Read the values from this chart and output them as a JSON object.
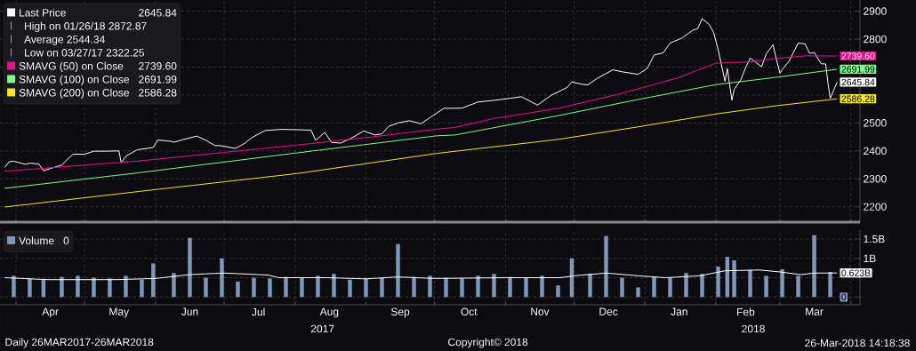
{
  "chart_data": [
    {
      "type": "line",
      "xlim": [
        "2017-03-25",
        "2018-04-05"
      ],
      "ylim": [
        2145,
        2940
      ],
      "xticks": [
        {
          "value": "2017-04-01",
          "label": null
        },
        {
          "value": "2017-05-01",
          "label": null
        },
        {
          "value": "2017-06-01",
          "label": null
        },
        {
          "value": "2017-07-01",
          "label": null
        },
        {
          "value": "2017-08-01",
          "label": null
        },
        {
          "value": "2017-09-01",
          "label": null
        },
        {
          "value": "2017-10-01",
          "label": null
        },
        {
          "value": "2017-11-01",
          "label": null
        },
        {
          "value": "2017-12-01",
          "label": null
        },
        {
          "value": "2018-01-01",
          "label": null
        },
        {
          "value": "2018-02-01",
          "label": null
        },
        {
          "value": "2018-03-01",
          "label": null
        },
        {
          "value": "2018-04-01",
          "label": null
        }
      ],
      "yticks": [
        2200,
        2300,
        2400,
        2500,
        {
          "value": 2600,
          "label": null
        },
        {
          "value": 2700,
          "label": null
        },
        2800,
        2900
      ],
      "grid": true,
      "legend": "top left",
      "tick_labels": "y",
      "annotations": [
        "High on 01/26/18 2872.87",
        "Average 2544.34",
        "Low on 03/27/17 2322.25"
      ],
      "series": [
        {
          "name": "Last Price",
          "color": "#ffffff",
          "x": [
            "2017-03-27",
            "2017-03-29",
            "2017-03-31",
            "2017-04-05",
            "2017-04-07",
            "2017-04-11",
            "2017-04-13",
            "2017-04-18",
            "2017-04-21",
            "2017-04-24",
            "2017-04-26",
            "2017-05-01",
            "2017-05-05",
            "2017-05-10",
            "2017-05-16",
            "2017-05-17",
            "2017-05-19",
            "2017-05-24",
            "2017-05-31",
            "2017-06-02",
            "2017-06-08",
            "2017-06-09",
            "2017-06-13",
            "2017-06-19",
            "2017-06-23",
            "2017-06-27",
            "2017-06-29",
            "2017-07-06",
            "2017-07-10",
            "2017-07-13",
            "2017-07-19",
            "2017-07-26",
            "2017-08-01",
            "2017-08-08",
            "2017-08-10",
            "2017-08-14",
            "2017-08-17",
            "2017-08-21",
            "2017-08-25",
            "2017-08-31",
            "2017-09-05",
            "2017-09-08",
            "2017-09-11",
            "2017-09-15",
            "2017-09-20",
            "2017-09-25",
            "2017-09-29",
            "2017-10-05",
            "2017-10-13",
            "2017-10-20",
            "2017-10-27",
            "2017-11-03",
            "2017-11-08",
            "2017-11-15",
            "2017-11-21",
            "2017-11-28",
            "2017-11-30",
            "2017-12-04",
            "2017-12-07",
            "2017-12-11",
            "2017-12-18",
            "2017-12-22",
            "2017-12-29",
            "2018-01-02",
            "2018-01-05",
            "2018-01-09",
            "2018-01-12",
            "2018-01-17",
            "2018-01-22",
            "2018-01-24",
            "2018-01-26",
            "2018-01-29",
            "2018-01-31",
            "2018-02-02",
            "2018-02-05",
            "2018-02-06",
            "2018-02-08",
            "2018-02-09",
            "2018-02-12",
            "2018-02-14",
            "2018-02-16",
            "2018-02-21",
            "2018-02-23",
            "2018-02-26",
            "2018-02-27",
            "2018-03-01",
            "2018-03-02",
            "2018-03-05",
            "2018-03-09",
            "2018-03-12",
            "2018-03-14",
            "2018-03-16",
            "2018-03-19",
            "2018-03-21",
            "2018-03-22",
            "2018-03-23",
            "2018-03-26"
          ],
          "values": [
            2341,
            2361,
            2363,
            2352,
            2356,
            2353,
            2329,
            2342,
            2349,
            2374,
            2388,
            2388,
            2399,
            2399,
            2400,
            2357,
            2381,
            2404,
            2412,
            2439,
            2434,
            2431,
            2440,
            2453,
            2438,
            2419,
            2419,
            2409,
            2427,
            2447,
            2473,
            2477,
            2476,
            2474,
            2438,
            2466,
            2430,
            2428,
            2443,
            2471,
            2457,
            2461,
            2488,
            2500,
            2508,
            2497,
            2519,
            2552,
            2553,
            2575,
            2581,
            2588,
            2594,
            2564,
            2599,
            2627,
            2647,
            2639,
            2636,
            2659,
            2690,
            2683,
            2674,
            2695,
            2743,
            2751,
            2786,
            2803,
            2832,
            2837,
            2873,
            2853,
            2824,
            2762,
            2649,
            2695,
            2581,
            2620,
            2656,
            2698,
            2732,
            2701,
            2747,
            2780,
            2744,
            2678,
            2691,
            2721,
            2786,
            2783,
            2749,
            2752,
            2712,
            2711,
            2643,
            2588,
            2645.84
          ],
          "value_labels": [
            null,
            null,
            null,
            null,
            null,
            null,
            null,
            null,
            null,
            null,
            null,
            null,
            null,
            null,
            null,
            null,
            null,
            null,
            null,
            null,
            null,
            null,
            null,
            null,
            null,
            null,
            null,
            null,
            null,
            null,
            null,
            null,
            null,
            null,
            null,
            null,
            null,
            null,
            null,
            null,
            null,
            null,
            null,
            null,
            null,
            null,
            null,
            null,
            null,
            null,
            null,
            null,
            null,
            null,
            null,
            null,
            null,
            null,
            null,
            null,
            null,
            null,
            null,
            null,
            null,
            null,
            null,
            null,
            null,
            null,
            null,
            null,
            null,
            null,
            null,
            null,
            null,
            null,
            null,
            null,
            null,
            null,
            null,
            null,
            null,
            null,
            null,
            null,
            null,
            null,
            null,
            null,
            null,
            null,
            null,
            null,
            "2645.84"
          ]
        },
        {
          "name": "SMAVG (50) on Close",
          "color": "#e8118a",
          "x": [
            "2017-03-27",
            "2017-05-25",
            "2017-08-02",
            "2017-09-07",
            "2017-10-02",
            "2017-10-10",
            "2017-10-27",
            "2017-11-24",
            "2017-12-19",
            "2018-01-15",
            "2018-02-01",
            "2018-02-15",
            "2018-03-01",
            "2018-03-12",
            "2018-03-26"
          ],
          "values": [
            2327,
            2364,
            2421,
            2453,
            2478,
            2484,
            2516,
            2552,
            2600,
            2660,
            2714,
            2718,
            2732,
            2740,
            2739.6
          ],
          "value_labels": [
            null,
            null,
            null,
            null,
            null,
            null,
            null,
            null,
            null,
            null,
            null,
            null,
            null,
            null,
            "2739.60"
          ]
        },
        {
          "name": "SMAVG (100) on Close",
          "color": "#7dfa8c",
          "x": [
            "2017-03-27",
            "2017-05-25",
            "2017-08-02",
            "2017-10-02",
            "2017-10-10",
            "2017-11-24",
            "2017-12-29",
            "2018-02-01",
            "2018-02-27",
            "2018-03-26"
          ],
          "values": [
            2266,
            2322,
            2393,
            2454,
            2457,
            2526,
            2584,
            2637,
            2663,
            2691.99
          ],
          "value_labels": [
            null,
            null,
            null,
            null,
            null,
            null,
            null,
            null,
            null,
            "2691.99"
          ]
        },
        {
          "name": "SMAVG (200) on Close",
          "color": "#f5e61e",
          "x": [
            "2017-03-27",
            "2017-05-25",
            "2017-08-02",
            "2017-10-02",
            "2017-11-24",
            "2017-12-29",
            "2018-02-01",
            "2018-02-27",
            "2018-03-26"
          ],
          "values": [
            2199,
            2255,
            2319,
            2391,
            2441,
            2486,
            2532,
            2561,
            2586.28
          ],
          "value_labels": [
            null,
            null,
            null,
            null,
            null,
            null,
            null,
            null,
            "2586.28"
          ]
        }
      ]
    },
    {
      "type": "bar",
      "xlim": [
        "2017-03-25",
        "2018-04-05"
      ],
      "ylim": [
        -0.2,
        1.73
      ],
      "xticks": [
        {
          "value": "2017-04-01",
          "label": null
        },
        {
          "value": "2017-05-01",
          "label": null
        },
        {
          "value": "2017-06-01",
          "label": null
        },
        {
          "value": "2017-07-01",
          "label": null
        },
        {
          "value": "2017-08-01",
          "label": null
        },
        {
          "value": "2017-09-01",
          "label": null
        },
        {
          "value": "2017-10-01",
          "label": null
        },
        {
          "value": "2017-11-01",
          "label": null
        },
        {
          "value": "2017-12-01",
          "label": null
        },
        {
          "value": "2018-01-01",
          "label": null
        },
        {
          "value": "2018-02-01",
          "label": null
        },
        {
          "value": "2018-03-01",
          "label": null
        },
        {
          "value": "2018-04-01",
          "label": null
        },
        {
          "value": "2017-04-16",
          "label": "Apr"
        },
        {
          "value": "2017-05-16",
          "label": "May"
        },
        {
          "value": "2017-06-16",
          "label": "Jun"
        },
        {
          "value": "2017-07-16",
          "label": "Jul"
        },
        {
          "value": "2017-08-16",
          "label": "Aug"
        },
        {
          "value": "2017-09-16",
          "label": "Sep"
        },
        {
          "value": "2017-10-16",
          "label": "Oct"
        },
        {
          "value": "2017-11-16",
          "label": "Nov"
        },
        {
          "value": "2017-12-16",
          "label": "Dec"
        },
        {
          "value": "2018-01-16",
          "label": "Jan"
        },
        {
          "value": "2018-02-14",
          "label": "Feb"
        },
        {
          "value": "2018-03-16",
          "label": "Mar"
        }
      ],
      "yticks": [
        {
          "value": 0,
          "label": null
        },
        {
          "value": 0.5,
          "label": null
        },
        {
          "value": 1,
          "label": "1B"
        },
        {
          "value": 1.5,
          "label": "1.5B"
        }
      ],
      "grid": true,
      "legend": "top left",
      "annotations": [
        "2017",
        "2018",
        "Daily 26MAR2017-26MAR2018",
        "Copyright© 2018",
        "26-Mar-2018 14:18:38"
      ],
      "series": [
        {
          "name": "Volume",
          "color": "#7f96b8",
          "x": [
            "2017-03-31",
            "2017-04-07",
            "2017-04-13",
            "2017-04-21",
            "2017-04-28",
            "2017-05-05",
            "2017-05-12",
            "2017-05-19",
            "2017-05-26",
            "2017-05-31",
            "2017-06-09",
            "2017-06-16",
            "2017-06-23",
            "2017-06-30",
            "2017-07-07",
            "2017-07-14",
            "2017-07-21",
            "2017-07-28",
            "2017-08-04",
            "2017-08-11",
            "2017-08-18",
            "2017-08-25",
            "2017-09-01",
            "2017-09-08",
            "2017-09-15",
            "2017-09-22",
            "2017-09-29",
            "2017-10-06",
            "2017-10-13",
            "2017-10-20",
            "2017-10-27",
            "2017-11-03",
            "2017-11-10",
            "2017-11-17",
            "2017-11-24",
            "2017-11-30",
            "2017-12-08",
            "2017-12-15",
            "2017-12-22",
            "2017-12-29",
            "2018-01-05",
            "2018-01-12",
            "2018-01-19",
            "2018-01-26",
            "2018-02-02",
            "2018-02-06",
            "2018-02-09",
            "2018-02-16",
            "2018-02-23",
            "2018-03-02",
            "2018-03-09",
            "2018-03-16",
            "2018-03-23",
            "2018-03-26"
          ],
          "values": [
            0.55,
            0.48,
            0.45,
            0.52,
            0.55,
            0.5,
            0.48,
            0.55,
            0.45,
            0.87,
            0.62,
            1.53,
            0.5,
            1.0,
            0.4,
            0.5,
            0.48,
            0.52,
            0.5,
            0.55,
            0.6,
            0.45,
            0.48,
            0.5,
            1.37,
            0.52,
            0.55,
            0.5,
            0.48,
            0.55,
            0.6,
            0.52,
            0.5,
            0.55,
            0.3,
            1.0,
            0.6,
            1.58,
            0.5,
            0.25,
            0.52,
            0.5,
            0.62,
            0.6,
            0.79,
            1.04,
            0.95,
            0.7,
            0.55,
            0.72,
            0.55,
            1.6,
            0.65,
            0
          ],
          "value_labels": [
            null,
            null,
            null,
            null,
            null,
            null,
            null,
            null,
            null,
            null,
            null,
            null,
            null,
            null,
            null,
            null,
            null,
            null,
            null,
            null,
            null,
            null,
            null,
            null,
            null,
            null,
            null,
            null,
            null,
            null,
            null,
            null,
            null,
            null,
            null,
            null,
            null,
            null,
            null,
            null,
            null,
            null,
            null,
            null,
            null,
            null,
            null,
            null,
            null,
            null,
            null,
            null,
            null,
            "0"
          ]
        },
        {
          "type": "line",
          "color": "#ffffff",
          "x": [
            "2017-03-27",
            "2017-04-15",
            "2017-05-15",
            "2017-06-01",
            "2017-06-16",
            "2017-06-23",
            "2017-07-01",
            "2017-07-20",
            "2017-07-25",
            "2017-08-15",
            "2017-09-01",
            "2017-09-15",
            "2017-10-01",
            "2017-11-01",
            "2017-11-25",
            "2017-12-01",
            "2017-12-15",
            "2017-12-29",
            "2018-01-10",
            "2018-01-25",
            "2018-02-05",
            "2018-02-20",
            "2018-03-01",
            "2018-03-10",
            "2018-03-16",
            "2018-03-26"
          ],
          "values": [
            0.5,
            0.45,
            0.45,
            0.48,
            0.58,
            0.6,
            0.62,
            0.57,
            0.5,
            0.5,
            0.47,
            0.52,
            0.48,
            0.5,
            0.5,
            0.55,
            0.62,
            0.55,
            0.5,
            0.55,
            0.68,
            0.7,
            0.65,
            0.58,
            0.62,
            0.623
          ],
          "value_labels": [
            null,
            null,
            null,
            null,
            null,
            null,
            null,
            null,
            null,
            null,
            null,
            null,
            null,
            null,
            null,
            null,
            null,
            null,
            null,
            null,
            null,
            null,
            null,
            null,
            null,
            "0.623B"
          ]
        }
      ]
    }
  ]
}
